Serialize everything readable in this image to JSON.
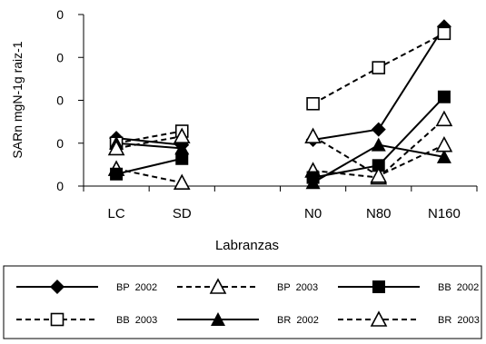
{
  "chart_data": {
    "type": "line",
    "title": "",
    "xlabel": "Labranzas",
    "ylabel": "SARn mgN-1g raiz-1",
    "categories": [
      "LC",
      "SD",
      "",
      "N0",
      "N80",
      "N160"
    ],
    "y_tick_labels": [
      "0",
      "0",
      "0",
      "0",
      "0"
    ],
    "ylim": [
      0,
      1
    ],
    "grid": false,
    "legend_position": "bottom",
    "series": [
      {
        "name": "BP  2002",
        "color": "#000000",
        "line": "solid",
        "marker": "diamond",
        "values": [
          0.28,
          0.24,
          null,
          0.27,
          0.33,
          0.93
        ]
      },
      {
        "name": "BP  2003",
        "color": "#000000",
        "line": "dashed",
        "marker": "triangle-open",
        "values": [
          0.1,
          0.02,
          null,
          0.09,
          0.05,
          0.39
        ]
      },
      {
        "name": "BB  2002",
        "color": "#000000",
        "line": "solid",
        "marker": "square",
        "values": [
          0.07,
          0.16,
          null,
          0.05,
          0.12,
          0.52
        ]
      },
      {
        "name": "BB  2003",
        "color": "#000000",
        "line": "dashed",
        "marker": "square-open",
        "values": [
          0.25,
          0.32,
          null,
          0.48,
          0.69,
          0.89
        ]
      },
      {
        "name": "BR  2002",
        "color": "#000000",
        "line": "solid",
        "marker": "triangle",
        "values": [
          0.25,
          0.22,
          null,
          0.02,
          0.24,
          0.17
        ]
      },
      {
        "name": "BR  2003",
        "color": "#000000",
        "line": "dashed",
        "marker": "triangle-open",
        "values": [
          0.22,
          0.29,
          null,
          0.29,
          0.06,
          0.24
        ]
      }
    ]
  }
}
